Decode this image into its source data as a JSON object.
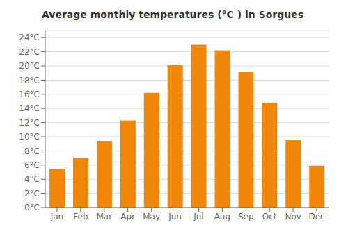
{
  "chart_data": {
    "type": "bar",
    "title": "Average monthly temperatures (°C ) in Sorgues",
    "categories": [
      "Jan",
      "Feb",
      "Mar",
      "Apr",
      "May",
      "Jun",
      "Jul",
      "Aug",
      "Sep",
      "Oct",
      "Nov",
      "Dec"
    ],
    "values": [
      5.5,
      7.0,
      9.4,
      12.3,
      16.2,
      20.1,
      23.0,
      22.2,
      19.2,
      14.8,
      9.5,
      5.9
    ],
    "color": "#F0860A",
    "ylim": [
      0,
      25
    ],
    "yticks": [
      {
        "value": 0,
        "label": "0°C"
      },
      {
        "value": 2,
        "label": "2°C"
      },
      {
        "value": 4,
        "label": "4°C"
      },
      {
        "value": 6,
        "label": "6°C"
      },
      {
        "value": 8,
        "label": "8°C"
      },
      {
        "value": 10,
        "label": "10°C"
      },
      {
        "value": 12,
        "label": "12°C"
      },
      {
        "value": 14,
        "label": "14°C"
      },
      {
        "value": 16,
        "label": "16°C"
      },
      {
        "value": 18,
        "label": "18°C"
      },
      {
        "value": 20,
        "label": "20°C"
      },
      {
        "value": 22,
        "label": "22°C"
      },
      {
        "value": 24,
        "label": "24°C"
      }
    ],
    "grid": true
  }
}
